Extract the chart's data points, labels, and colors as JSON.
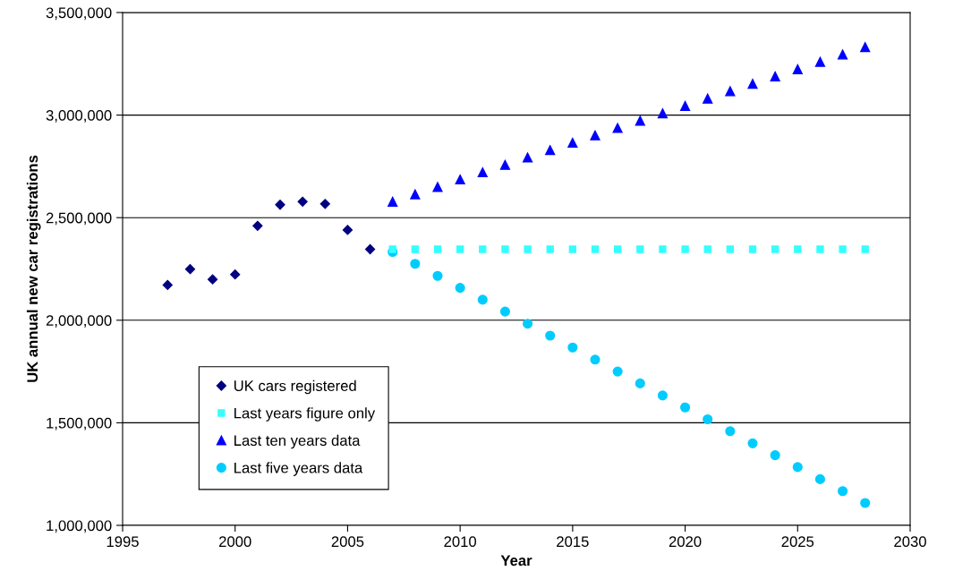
{
  "chart_data": {
    "type": "scatter",
    "xlabel": "Year",
    "ylabel": "UK annual new car registrations",
    "xlim": [
      1995,
      2030
    ],
    "xticks": [
      1995,
      2000,
      2005,
      2010,
      2015,
      2020,
      2025,
      2030
    ],
    "ylim": [
      1000000,
      3500000
    ],
    "yticks": [
      {
        "value": 1000000,
        "label": "1,000,000"
      },
      {
        "value": 1500000,
        "label": "1,500,000"
      },
      {
        "value": 2000000,
        "label": "2,000,000"
      },
      {
        "value": 2500000,
        "label": "2,500,000"
      },
      {
        "value": 3000000,
        "label": "3,000,000"
      },
      {
        "value": 3500000,
        "label": "3,500,000"
      }
    ],
    "grid": "y",
    "legend": "bottom left",
    "series": [
      {
        "name": "UK cars registered",
        "color": "#000080",
        "marker": "diamond",
        "x": [
          1997,
          1998,
          1999,
          2000,
          2001,
          2002,
          2003,
          2004,
          2005,
          2006
        ],
        "values": [
          2172000,
          2249000,
          2199000,
          2223000,
          2460000,
          2563000,
          2578000,
          2567000,
          2440000,
          2346000
        ]
      },
      {
        "name": "Last years figure only",
        "color": "#33ffff",
        "marker": "square",
        "x": [
          2007,
          2008,
          2009,
          2010,
          2011,
          2012,
          2013,
          2014,
          2015,
          2016,
          2017,
          2018,
          2019,
          2020,
          2021,
          2022,
          2023,
          2024,
          2025,
          2026,
          2027,
          2028
        ],
        "values": [
          2346000,
          2346000,
          2346000,
          2346000,
          2346000,
          2346000,
          2346000,
          2346000,
          2346000,
          2346000,
          2346000,
          2346000,
          2346000,
          2346000,
          2346000,
          2346000,
          2346000,
          2346000,
          2346000,
          2346000,
          2346000,
          2346000
        ]
      },
      {
        "name": "Last ten years data",
        "color": "#0000ff",
        "marker": "triangle",
        "x": [
          2007,
          2008,
          2009,
          2010,
          2011,
          2012,
          2013,
          2014,
          2015,
          2016,
          2017,
          2018,
          2019,
          2020,
          2021,
          2022,
          2023,
          2024,
          2025,
          2026,
          2027,
          2028
        ],
        "values": [
          2578000,
          2614000,
          2650000,
          2686000,
          2721000,
          2757000,
          2793000,
          2829000,
          2865000,
          2901000,
          2937000,
          2972000,
          3008000,
          3044000,
          3080000,
          3116000,
          3152000,
          3188000,
          3223000,
          3259000,
          3295000,
          3331000
        ]
      },
      {
        "name": "Last five years data",
        "color": "#00ccff",
        "marker": "circle",
        "x": [
          2007,
          2008,
          2009,
          2010,
          2011,
          2012,
          2013,
          2014,
          2015,
          2016,
          2017,
          2018,
          2019,
          2020,
          2021,
          2022,
          2023,
          2024,
          2025,
          2026,
          2027,
          2028
        ],
        "values": [
          2333000,
          2275000,
          2216000,
          2158000,
          2100000,
          2042000,
          1983000,
          1925000,
          1867000,
          1808000,
          1750000,
          1692000,
          1633000,
          1575000,
          1517000,
          1459000,
          1400000,
          1342000,
          1284000,
          1225000,
          1167000,
          1109000
        ]
      }
    ]
  }
}
